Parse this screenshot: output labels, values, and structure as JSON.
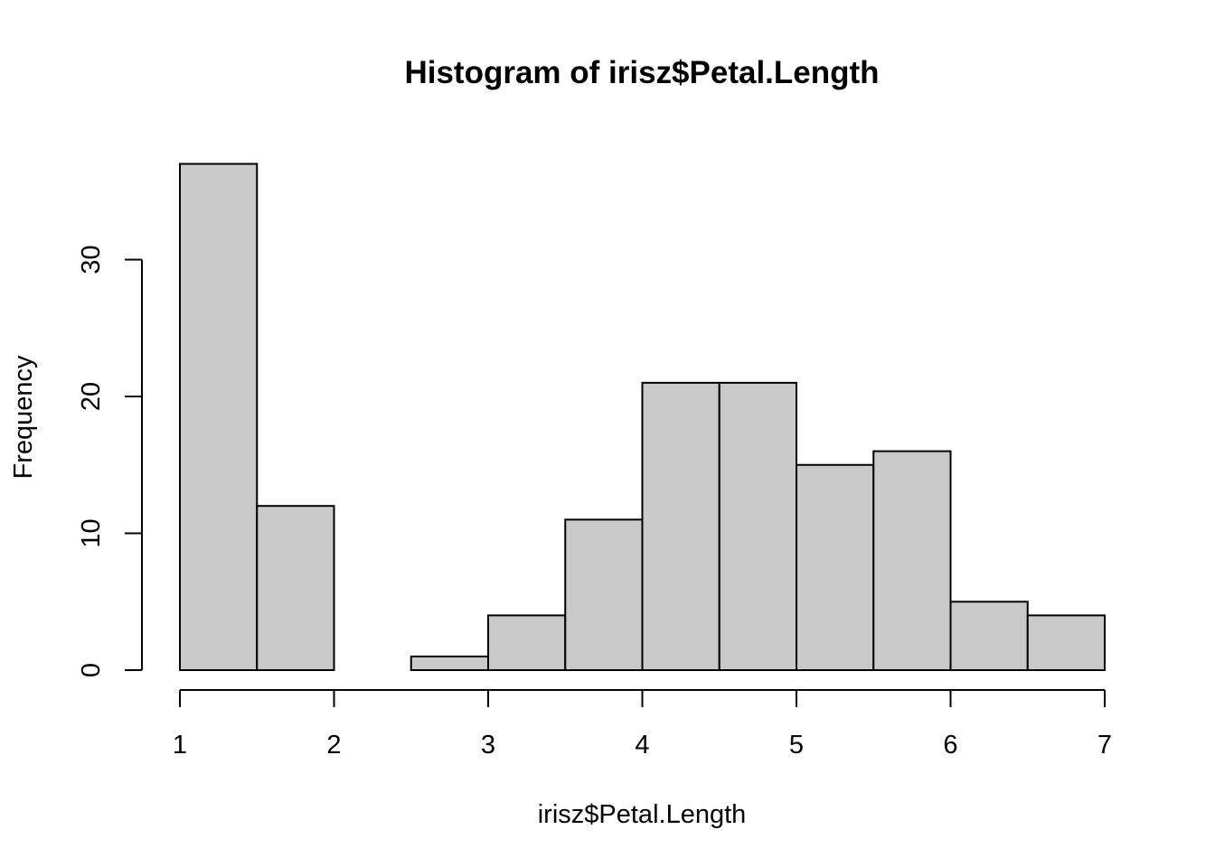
{
  "chart_data": {
    "type": "bar",
    "title": "Histogram of irisz$Petal.Length",
    "xlabel": "irisz$Petal.Length",
    "ylabel": "Frequency",
    "bins": [
      {
        "from": 1.0,
        "to": 1.5,
        "count": 37
      },
      {
        "from": 1.5,
        "to": 2.0,
        "count": 12
      },
      {
        "from": 2.0,
        "to": 2.5,
        "count": 0
      },
      {
        "from": 2.5,
        "to": 3.0,
        "count": 1
      },
      {
        "from": 3.0,
        "to": 3.5,
        "count": 4
      },
      {
        "from": 3.5,
        "to": 4.0,
        "count": 11
      },
      {
        "from": 4.0,
        "to": 4.5,
        "count": 21
      },
      {
        "from": 4.5,
        "to": 5.0,
        "count": 21
      },
      {
        "from": 5.0,
        "to": 5.5,
        "count": 15
      },
      {
        "from": 5.5,
        "to": 6.0,
        "count": 16
      },
      {
        "from": 6.0,
        "to": 6.5,
        "count": 5
      },
      {
        "from": 6.5,
        "to": 7.0,
        "count": 4
      }
    ],
    "xticks": [
      "1",
      "2",
      "3",
      "4",
      "5",
      "6",
      "7"
    ],
    "yticks": [
      "0",
      "10",
      "20",
      "30"
    ],
    "xlim": [
      1,
      7
    ],
    "ylim": [
      0,
      37
    ],
    "grid": false,
    "bar_color": "#c9c9c9",
    "border_color": "#000000"
  }
}
